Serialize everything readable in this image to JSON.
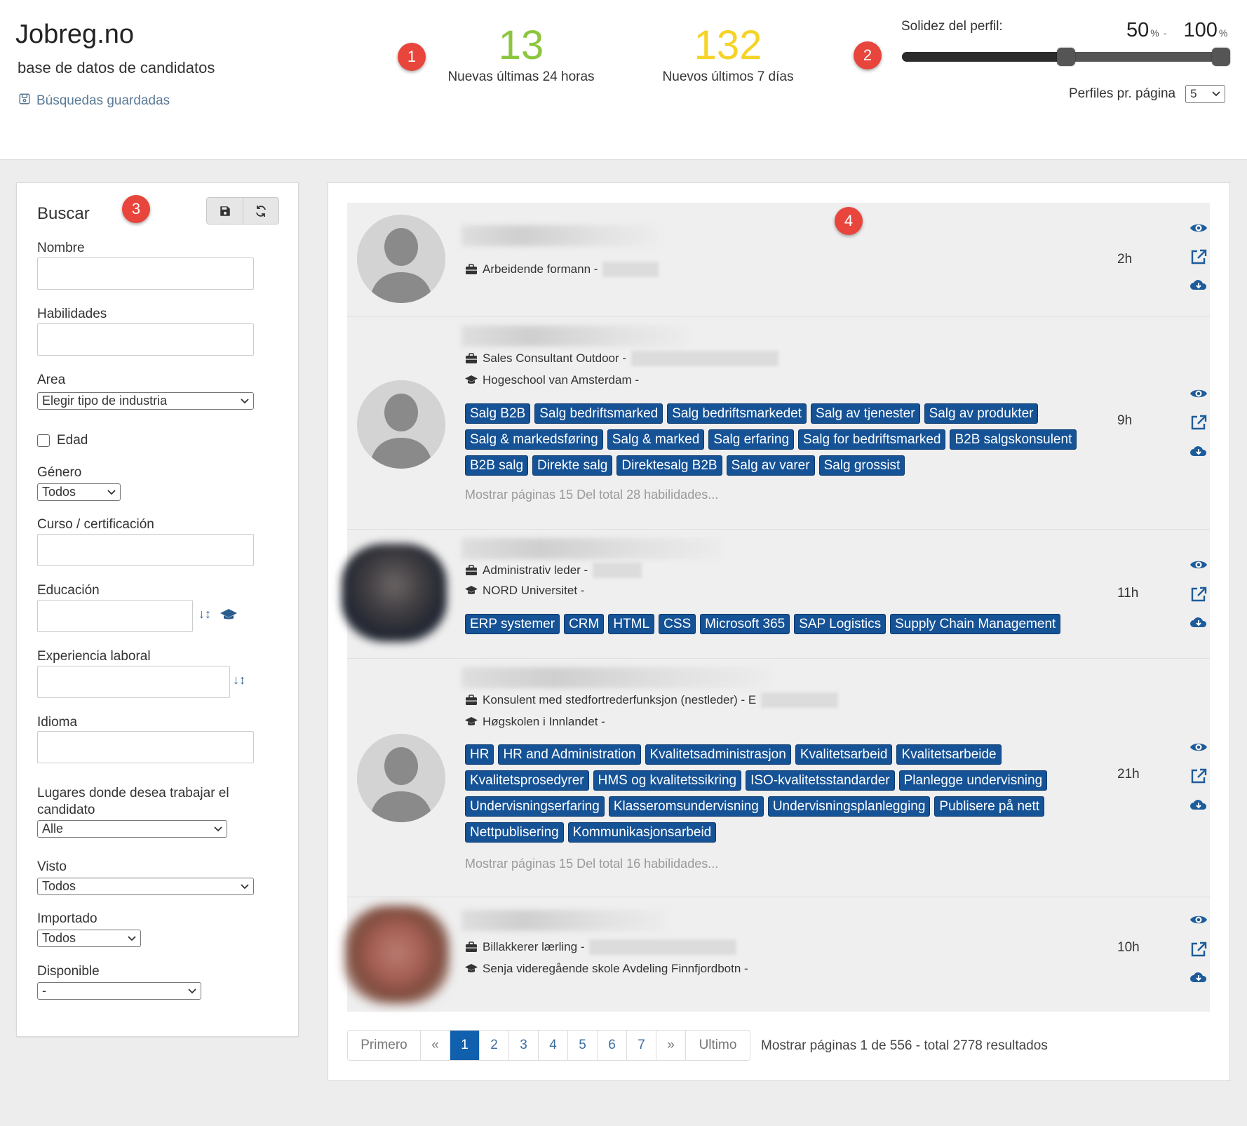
{
  "header": {
    "brand": "Jobreg.no",
    "subtitle": "base de datos de candidatos",
    "saved_searches": "Búsquedas guardadas",
    "badges": [
      "1",
      "2",
      "3",
      "4"
    ],
    "stat_24h": {
      "value": "13",
      "label": "Nuevas últimas 24 horas",
      "color": "#8cc63f"
    },
    "stat_7d": {
      "value": "132",
      "label": "Nuevos últimos 7 días",
      "color": "#f5d327"
    },
    "profile_strength": {
      "label": "Solidez del perfil:",
      "min": "50",
      "max": "100",
      "unit": "%",
      "separator": "-",
      "range_fraction": [
        0.5,
        1.0
      ]
    },
    "per_page": {
      "label": "Perfiles pr. página",
      "value": "5"
    }
  },
  "sidebar": {
    "title": "Buscar",
    "save_icon": "save-icon",
    "reset_icon": "refresh-icon",
    "fields": {
      "nombre": "Nombre",
      "habilidades": "Habilidades",
      "area": "Area",
      "area_value": "Elegir tipo de industria",
      "edad": "Edad",
      "genero": "Género",
      "genero_value": "Todos",
      "curso": "Curso / certificación",
      "educacion": "Educación",
      "experiencia": "Experiencia laboral",
      "idioma": "Idioma",
      "lugares": "Lugares donde desea trabajar el candidato",
      "lugares_value": "Alle",
      "visto": "Visto",
      "visto_value": "Todos",
      "importado": "Importado",
      "importado_value": "Todos",
      "disponible": "Disponible",
      "disponible_value": "-"
    }
  },
  "candidates": [
    {
      "job": "Arbeidende formann -",
      "time": "2h"
    },
    {
      "job": "Sales Consultant Outdoor -",
      "school": "Hogeschool van Amsterdam -",
      "tags": [
        "Salg B2B",
        "Salg bedriftsmarked",
        "Salg bedriftsmarkedet",
        "Salg av tjenester",
        "Salg av produkter",
        "Salg & markedsføring",
        "Salg & marked",
        "Salg erfaring",
        "Salg for bedriftsmarked",
        "B2B salgskonsulent",
        "B2B salg",
        "Direkte salg",
        "Direktesalg B2B",
        "Salg av varer",
        "Salg grossist"
      ],
      "more": "Mostrar páginas 15 Del total 28 habilidades...",
      "time": "9h"
    },
    {
      "job": "Administrativ leder -",
      "school": "NORD Universitet -",
      "tags": [
        "ERP systemer",
        "CRM",
        "HTML",
        "CSS",
        "Microsoft 365",
        "SAP Logistics",
        "Supply Chain Management"
      ],
      "time": "11h"
    },
    {
      "job": "Konsulent med stedfortrederfunksjon (nestleder) - E",
      "school": "Høgskolen i Innlandet -",
      "tags": [
        "HR",
        "HR and Administration",
        "Kvalitetsadministrasjon",
        "Kvalitetsarbeid",
        "Kvalitetsarbeide",
        "Kvalitetsprosedyrer",
        "HMS og kvalitetssikring",
        "ISO-kvalitetsstandarder",
        "Planlegge undervisning",
        "Undervisningserfaring",
        "Klasseromsundervisning",
        "Undervisningsplanlegging",
        "Publisere på nett",
        "Nettpublisering",
        "Kommunikasjonsarbeid"
      ],
      "more": "Mostrar páginas 15 Del total 16 habilidades...",
      "time": "21h"
    },
    {
      "job": "Billakkerer lærling -",
      "school": "Senja videregående skole Avdeling Finnfjordbotn -",
      "time": "10h"
    }
  ],
  "pagination": {
    "first": "Primero",
    "prev": "«",
    "pages": [
      "1",
      "2",
      "3",
      "4",
      "5",
      "6",
      "7"
    ],
    "next": "»",
    "last": "Ultimo",
    "info_prefix": "Mostrar páginas",
    "current": "1",
    "of": "de",
    "total_pages": "556",
    "total_prefix": "- total",
    "total_results": "2778",
    "results_word": "resultados"
  }
}
